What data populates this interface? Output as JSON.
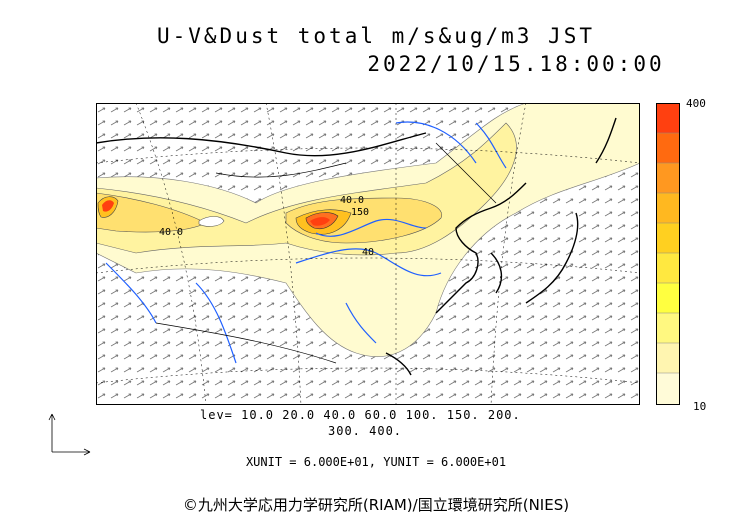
{
  "title_line1": "U-V&Dust total m/s&ug/m3 JST",
  "title_line2": "2022/10/15.18:00:00",
  "colorbar": {
    "max_label": "400",
    "min_label": "10"
  },
  "levels_line1": "lev= 10.0 20.0 40.0 60.0 100. 150. 200.",
  "levels_line2": "300. 400.",
  "units": "XUNIT = 6.000E+01, YUNIT = 6.000E+01",
  "copyright": "©九州大学応用力学研究所(RIAM)/国立環境研究所(NIES)",
  "contour_labels": [
    "40.0",
    "40.0",
    "40",
    "150"
  ],
  "colors": {
    "high": "#ff4010",
    "mid": "#ffc020",
    "low": "#fff080",
    "faint": "#fffbd0",
    "water": "#2060ff",
    "coast": "#000000"
  }
}
